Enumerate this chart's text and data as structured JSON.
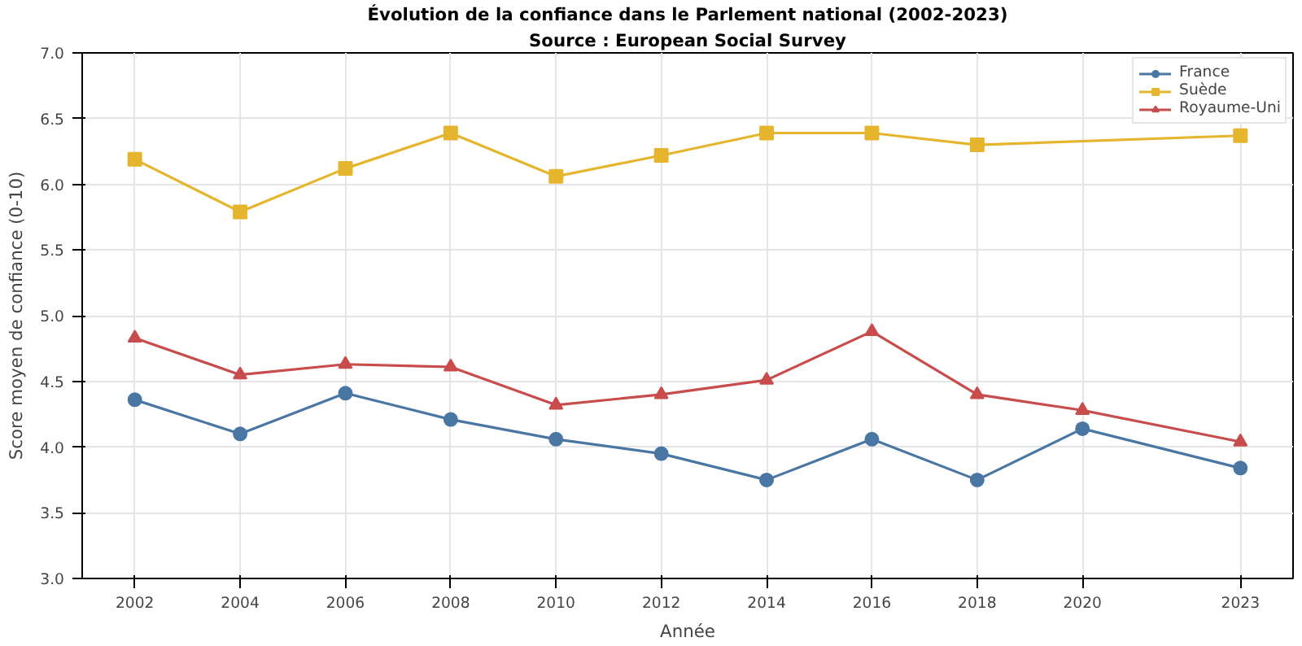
{
  "chart_data": {
    "type": "line",
    "title": "Évolution de la confiance dans le Parlement national (2002-2023)",
    "subtitle": "Source : European Social Survey",
    "xlabel": "Année",
    "ylabel": "Score moyen de confiance (0-10)",
    "x": [
      2002,
      2004,
      2006,
      2008,
      2010,
      2012,
      2014,
      2016,
      2018,
      2020,
      2023
    ],
    "series": [
      {
        "name": "France",
        "color": "#4a76a3",
        "marker": "circle",
        "values": [
          4.36,
          4.1,
          4.41,
          4.21,
          4.06,
          3.95,
          3.75,
          4.06,
          3.75,
          4.14,
          3.84
        ]
      },
      {
        "name": "Suède",
        "color": "#e6b52e",
        "marker": "square",
        "x": [
          2002,
          2004,
          2006,
          2008,
          2010,
          2012,
          2014,
          2016,
          2018,
          2023
        ],
        "values": [
          6.19,
          5.79,
          6.12,
          6.39,
          6.06,
          6.22,
          6.39,
          6.39,
          6.3,
          6.37
        ]
      },
      {
        "name": "Royaume-Uni",
        "color": "#c84c4c",
        "marker": "triangle",
        "values": [
          4.83,
          4.55,
          4.63,
          4.61,
          4.32,
          4.4,
          4.51,
          4.88,
          4.4,
          4.28,
          4.04
        ]
      }
    ],
    "xlim": [
      2001,
      2024
    ],
    "xticks": [
      2002,
      2004,
      2006,
      2008,
      2010,
      2012,
      2014,
      2016,
      2018,
      2020,
      2023
    ],
    "ylim": [
      3.0,
      7.0
    ],
    "yticks": [
      {
        "value": 3.0,
        "label": "3.0"
      },
      {
        "value": 3.5,
        "label": "3.5"
      },
      {
        "value": 4.0,
        "label": "4.0"
      },
      {
        "value": 4.5,
        "label": "4.5"
      },
      {
        "value": 5.0,
        "label": "5.0"
      },
      {
        "value": 5.5,
        "label": "5.5"
      },
      {
        "value": 6.0,
        "label": "6.0"
      },
      {
        "value": 6.5,
        "label": "6.5"
      },
      {
        "value": 7.0,
        "label": "7.0"
      }
    ],
    "grid": true,
    "legend": "top right",
    "line_style": "solid"
  }
}
